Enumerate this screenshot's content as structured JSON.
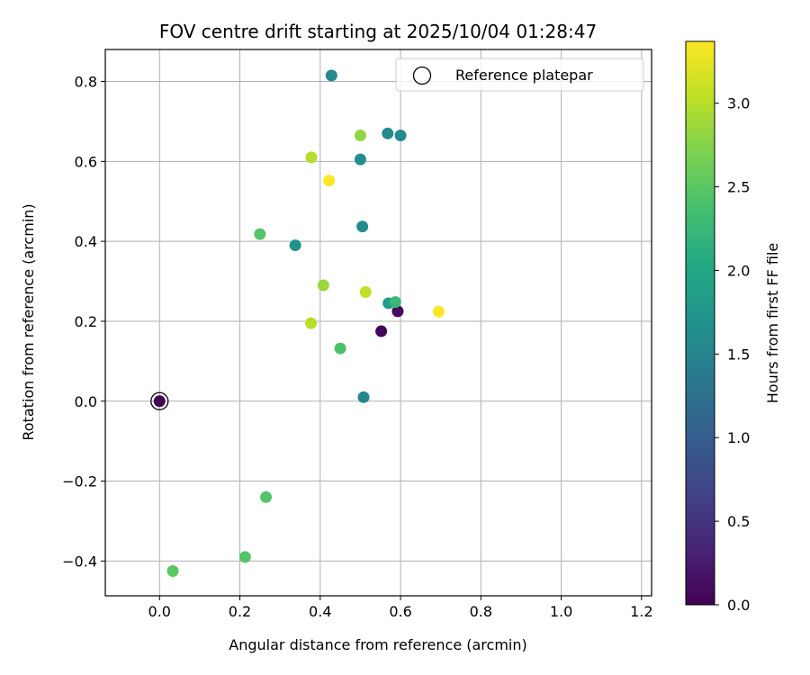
{
  "chart_data": {
    "type": "scatter",
    "title": "FOV centre drift starting at 2025/10/04 01:28:47",
    "xlabel": "Angular distance from reference (arcmin)",
    "ylabel": "Rotation from reference (arcmin)",
    "xlim": [
      -0.135,
      1.225
    ],
    "ylim": [
      -0.487,
      0.88
    ],
    "xticks": [
      0.0,
      0.2,
      0.4,
      0.6,
      0.8,
      1.0,
      1.2
    ],
    "xtick_labels": [
      "0.0",
      "0.2",
      "0.4",
      "0.6",
      "0.8",
      "1.0",
      "1.2"
    ],
    "yticks": [
      -0.4,
      -0.2,
      0.0,
      0.2,
      0.4,
      0.6,
      0.8
    ],
    "ytick_labels": [
      "−0.4",
      "−0.2",
      "0.0",
      "0.2",
      "0.4",
      "0.6",
      "0.8"
    ],
    "grid": true,
    "legend": {
      "position": "top-right",
      "label": "Reference platepar"
    },
    "reference_point": {
      "x": 0.0,
      "y": 0.0
    },
    "colorbar": {
      "label": "Hours from first FF file",
      "min": 0.0,
      "max": 3.37,
      "ticks": [
        0.0,
        0.5,
        1.0,
        1.5,
        2.0,
        2.5,
        3.0
      ],
      "tick_labels": [
        "0.0",
        "0.5",
        "1.0",
        "1.5",
        "2.0",
        "2.5",
        "3.0"
      ],
      "colormap": "viridis"
    },
    "points": [
      {
        "x": 0.0,
        "y": 0.0,
        "hours": 0.0
      },
      {
        "x": 0.552,
        "y": 0.175,
        "hours": 0.05
      },
      {
        "x": 0.593,
        "y": 0.225,
        "hours": 0.1
      },
      {
        "x": 0.508,
        "y": 0.01,
        "hours": 1.55
      },
      {
        "x": 0.428,
        "y": 0.815,
        "hours": 1.6
      },
      {
        "x": 0.568,
        "y": 0.67,
        "hours": 1.6
      },
      {
        "x": 0.6,
        "y": 0.665,
        "hours": 1.6
      },
      {
        "x": 0.505,
        "y": 0.437,
        "hours": 1.6
      },
      {
        "x": 0.5,
        "y": 0.605,
        "hours": 1.65
      },
      {
        "x": 0.338,
        "y": 0.39,
        "hours": 1.7
      },
      {
        "x": 0.57,
        "y": 0.245,
        "hours": 1.85
      },
      {
        "x": 0.587,
        "y": 0.248,
        "hours": 2.25
      },
      {
        "x": 0.45,
        "y": 0.132,
        "hours": 2.4
      },
      {
        "x": 0.25,
        "y": 0.418,
        "hours": 2.45
      },
      {
        "x": 0.265,
        "y": -0.24,
        "hours": 2.45
      },
      {
        "x": 0.213,
        "y": -0.39,
        "hours": 2.45
      },
      {
        "x": 0.033,
        "y": -0.425,
        "hours": 2.5
      },
      {
        "x": 0.5,
        "y": 0.665,
        "hours": 2.8
      },
      {
        "x": 0.408,
        "y": 0.29,
        "hours": 2.85
      },
      {
        "x": 0.378,
        "y": 0.61,
        "hours": 3.0
      },
      {
        "x": 0.377,
        "y": 0.195,
        "hours": 3.0
      },
      {
        "x": 0.513,
        "y": 0.273,
        "hours": 3.05
      },
      {
        "x": 0.422,
        "y": 0.552,
        "hours": 3.37
      },
      {
        "x": 0.695,
        "y": 0.224,
        "hours": 3.37
      }
    ]
  }
}
